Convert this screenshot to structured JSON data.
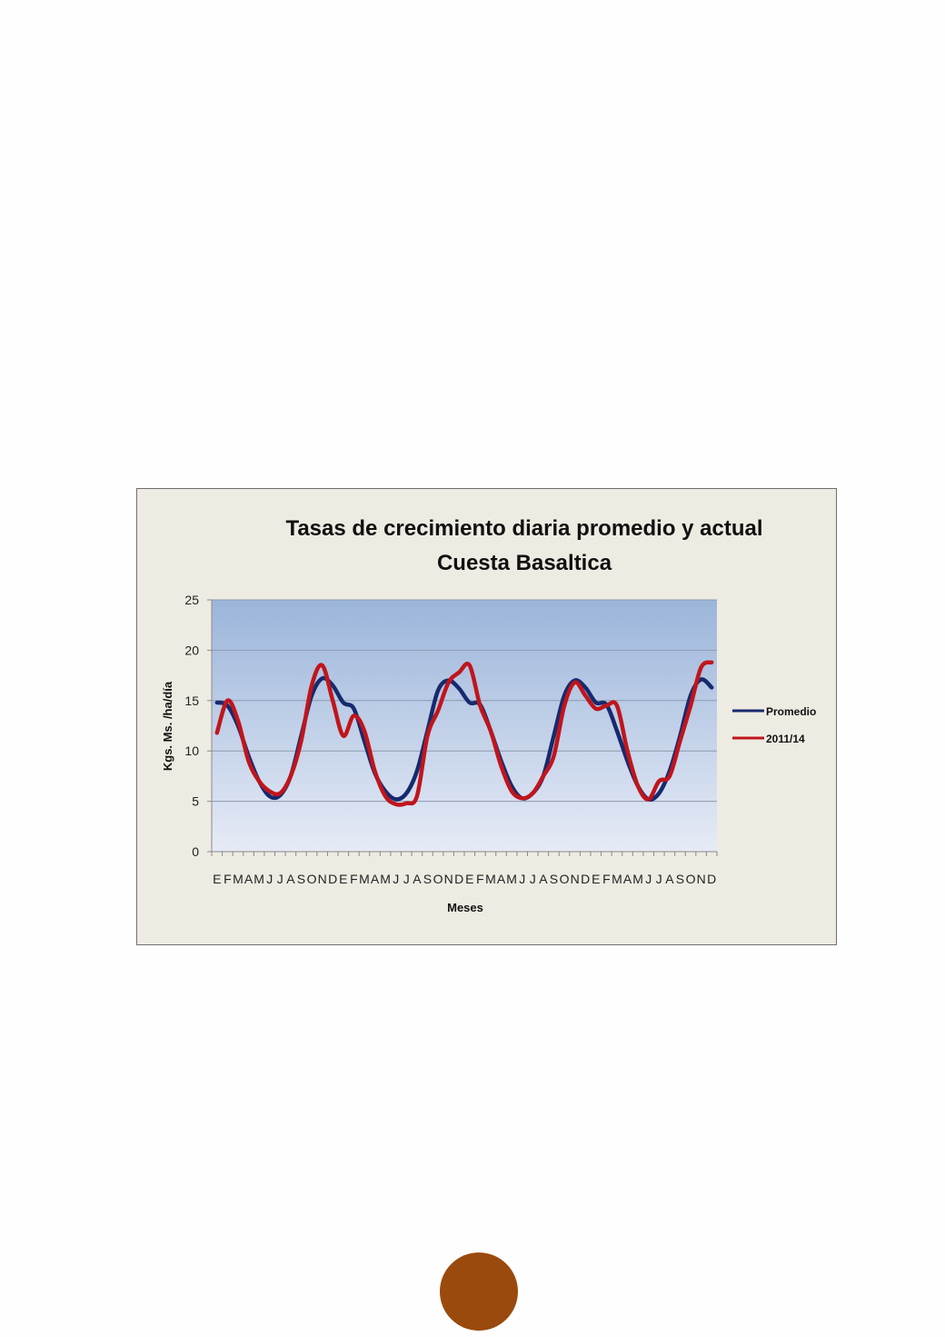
{
  "chart_data": {
    "type": "line",
    "title": "Tasas de crecimiento diaria promedio y actual",
    "subtitle": "Cuesta Basaltica",
    "xlabel": "Meses",
    "ylabel": "Kgs. Ms. /ha/día",
    "ylim": [
      0,
      25
    ],
    "yticks": [
      0,
      5,
      10,
      15,
      20,
      25
    ],
    "grid": true,
    "legend_position": "right",
    "categories": [
      "E",
      "F",
      "M",
      "A",
      "M",
      "J",
      "J",
      "A",
      "S",
      "O",
      "N",
      "D",
      "E",
      "F",
      "M",
      "A",
      "M",
      "J",
      "J",
      "A",
      "S",
      "O",
      "N",
      "D",
      "E",
      "F",
      "M",
      "A",
      "M",
      "J",
      "J",
      "A",
      "S",
      "O",
      "N",
      "D",
      "E",
      "F",
      "M",
      "A",
      "M",
      "J",
      "J",
      "A",
      "S",
      "O",
      "N",
      "D"
    ],
    "series": [
      {
        "name": "Promedio",
        "color": "#162a6e",
        "values": [
          14.8,
          14.5,
          12.5,
          9.5,
          7.0,
          5.5,
          5.6,
          7.5,
          11.5,
          15.5,
          17.2,
          16.5,
          14.8,
          14.2,
          11.0,
          7.8,
          6.0,
          5.2,
          5.8,
          8.0,
          12.0,
          16.0,
          17.0,
          16.2,
          14.8,
          14.6,
          12.0,
          9.0,
          6.5,
          5.3,
          5.8,
          7.5,
          11.5,
          15.5,
          17.0,
          16.3,
          14.8,
          14.6,
          12.0,
          9.0,
          6.5,
          5.2,
          5.8,
          8.0,
          11.5,
          15.5,
          17.1,
          16.3
        ]
      },
      {
        "name": "2011/14",
        "color": "#c0151c",
        "values": [
          11.8,
          15.0,
          13.0,
          9.0,
          7.0,
          6.0,
          5.8,
          7.5,
          11.0,
          16.5,
          18.5,
          15.0,
          11.5,
          13.5,
          12.0,
          8.0,
          5.5,
          4.7,
          4.8,
          5.5,
          11.5,
          14.0,
          16.8,
          17.8,
          18.5,
          14.5,
          12.0,
          8.5,
          6.0,
          5.3,
          5.8,
          7.5,
          9.5,
          14.5,
          16.8,
          15.5,
          14.2,
          14.5,
          14.5,
          10.0,
          6.5,
          5.2,
          7.0,
          7.5,
          11.0,
          14.5,
          18.3,
          18.8
        ]
      }
    ]
  },
  "decor": {
    "frame_border": "#6f6f6f",
    "frame_bg": "#eeebe2",
    "plot_gradient_top": "#9bb5da",
    "plot_gradient_bottom": "#e6ebf6",
    "gridline_color": "#8e9aae",
    "page_dot_color": "#9a4a0c"
  }
}
